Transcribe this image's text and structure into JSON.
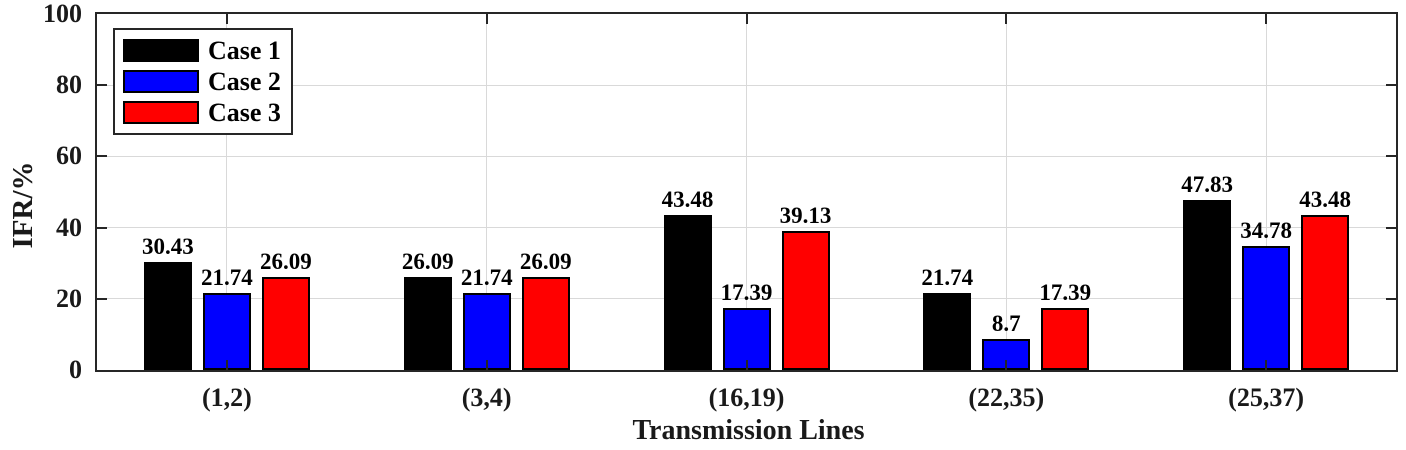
{
  "chart_data": {
    "type": "bar",
    "title": "",
    "xlabel": "Transmission Lines",
    "ylabel": "IFR/%",
    "categories": [
      "(1,2)",
      "(3,4)",
      "(16,19)",
      "(22,35)",
      "(25,37)"
    ],
    "series": [
      {
        "name": "Case 1",
        "color": "#000000",
        "values": [
          30.43,
          26.09,
          43.48,
          21.74,
          47.83
        ]
      },
      {
        "name": "Case 2",
        "color": "#0000ff",
        "values": [
          21.74,
          21.74,
          17.39,
          8.7,
          34.78
        ]
      },
      {
        "name": "Case 3",
        "color": "#ff0000",
        "values": [
          26.09,
          26.09,
          39.13,
          17.39,
          43.48
        ]
      }
    ],
    "bar_value_labels": [
      "30.43",
      "26.09",
      "43.48",
      "21.74",
      "47.83",
      "21.74",
      "21.74",
      "17.39",
      "8.7",
      "34.78",
      "26.09",
      "26.09",
      "39.13",
      "17.39",
      "43.48"
    ],
    "ylim": [
      0,
      100
    ],
    "yticks": [
      0,
      20,
      40,
      60,
      80,
      100
    ],
    "grid": true,
    "legend_position": "top-left"
  },
  "colors": {
    "frame": "#262626",
    "grid": "#d9d9d9",
    "background": "#ffffff",
    "text": "#000000",
    "bar_edge": "#000000"
  }
}
